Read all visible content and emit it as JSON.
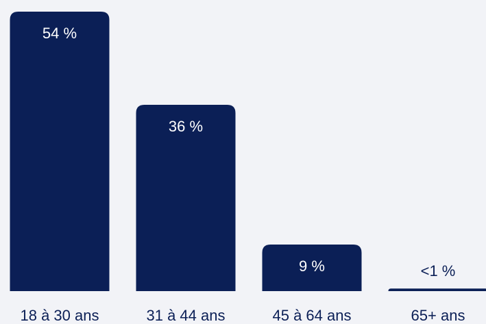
{
  "chart_data": {
    "type": "bar",
    "categories": [
      "18 à 30 ans",
      "31 à 44 ans",
      "45 à 64 ans",
      "65+ ans"
    ],
    "values": [
      54,
      36,
      9,
      0.5
    ],
    "value_labels": [
      "54 %",
      "36 %",
      "9 %",
      "<1 %"
    ],
    "color": "#0b1f56"
  }
}
